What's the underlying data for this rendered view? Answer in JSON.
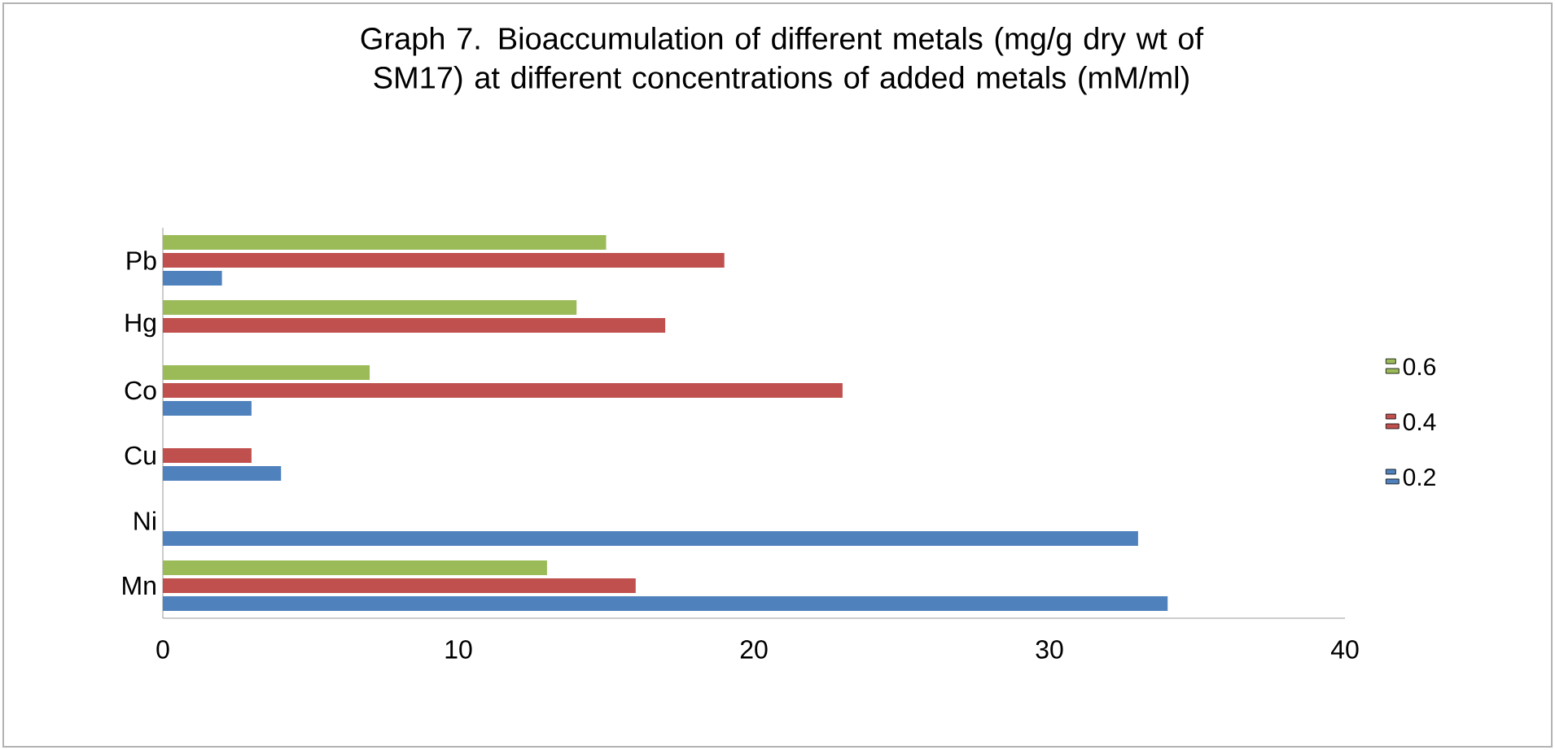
{
  "chart_data": {
    "type": "bar",
    "orientation": "horizontal",
    "title": "Graph 7. Bioaccumulation of different metals (mg/g dry wt of SM17) at different concentrations of added metals (mM/ml)",
    "categories": [
      "Pb",
      "Hg",
      "Co",
      "Cu",
      "Ni",
      "Mn"
    ],
    "series": [
      {
        "name": "0.2",
        "color": "#4f81bd",
        "values": [
          2,
          null,
          3,
          4,
          33,
          34
        ]
      },
      {
        "name": "0.4",
        "color": "#c0504d",
        "values": [
          19,
          17,
          23,
          3,
          null,
          16
        ]
      },
      {
        "name": "0.6",
        "color": "#9bbb59",
        "values": [
          15,
          14,
          7,
          null,
          null,
          13
        ]
      }
    ],
    "xlim": [
      0,
      40
    ],
    "xticks": [
      0,
      10,
      20,
      30,
      40
    ],
    "legend": "right"
  }
}
